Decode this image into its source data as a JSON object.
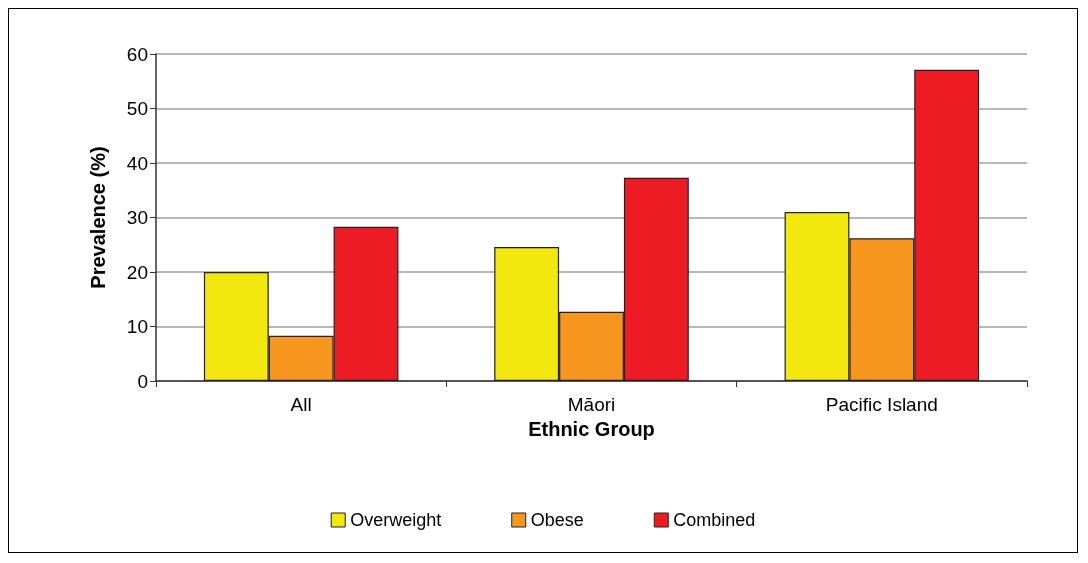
{
  "chart_data": {
    "type": "bar",
    "xlabel": "Ethnic Group",
    "ylabel": "Prevalence (%)",
    "categories": [
      "All",
      "Māori",
      "Pacific Island"
    ],
    "series": [
      {
        "name": "Overweight",
        "color": "#f2e80f",
        "values": [
          20.0,
          24.6,
          31.0
        ]
      },
      {
        "name": "Obese",
        "color": "#f7961f",
        "values": [
          8.3,
          12.7,
          26.2
        ]
      },
      {
        "name": "Combined",
        "color": "#ed1c24",
        "values": [
          28.3,
          37.3,
          57.1
        ]
      }
    ],
    "ylim": [
      0,
      60
    ],
    "yticks": [
      0,
      10,
      20,
      30,
      40,
      50,
      60
    ],
    "grid": "y",
    "legend": "bottom"
  }
}
